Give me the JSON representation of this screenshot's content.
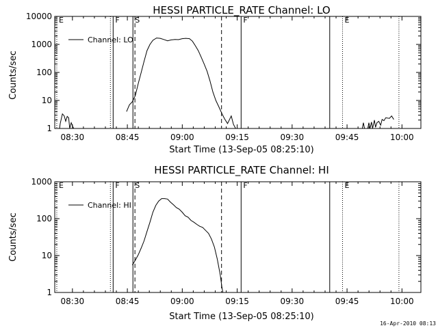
{
  "footer": {
    "timestamp": "16-Apr-2010 08:13"
  },
  "chart_data": [
    {
      "type": "line",
      "title": "HESSI PARTICLE_RATE Channel: LO",
      "xlabel": "Start Time (13-Sep-05 08:25:10)",
      "ylabel": "Counts/sec",
      "legend": "Channel: LO",
      "x_unit": "minutes since 08:25:10",
      "xlim": [
        0,
        100
      ],
      "ylim": [
        1,
        10000
      ],
      "yscale": "log",
      "xticks": [
        {
          "v": 4.83,
          "label": "08:30"
        },
        {
          "v": 19.83,
          "label": "08:45"
        },
        {
          "v": 34.83,
          "label": "09:00"
        },
        {
          "v": 49.83,
          "label": "09:15"
        },
        {
          "v": 64.83,
          "label": "09:30"
        },
        {
          "v": 79.83,
          "label": "09:45"
        },
        {
          "v": 94.83,
          "label": "10:00"
        }
      ],
      "yticks": [
        {
          "v": 1,
          "label": "1"
        },
        {
          "v": 10,
          "label": "10"
        },
        {
          "v": 100,
          "label": "100"
        },
        {
          "v": 1000,
          "label": "1000"
        },
        {
          "v": 10000,
          "label": "10000"
        }
      ],
      "markers": [
        {
          "x": 0.55,
          "label": "E",
          "style": "dotted"
        },
        {
          "x": 15.2,
          "label": "",
          "style": "dotted"
        },
        {
          "x": 15.95,
          "label": "F",
          "style": "solid"
        },
        {
          "x": 21.35,
          "label": "S",
          "style": "solid"
        },
        {
          "x": 21.9,
          "label": "",
          "style": "dashed"
        },
        {
          "x": 45.55,
          "label": "",
          "style": "dashed"
        },
        {
          "x": 50.9,
          "label": "F",
          "style": "solid"
        },
        {
          "x": 75.1,
          "label": "",
          "style": "solid"
        },
        {
          "x": 78.6,
          "label": "E",
          "style": "dotted"
        },
        {
          "x": 94.0,
          "label": "",
          "style": "dotted"
        }
      ],
      "series": [
        {
          "name": "Channel: LO",
          "points": [
            [
              0,
              1
            ],
            [
              1.3,
              1
            ],
            [
              1.5,
              1.5
            ],
            [
              2.1,
              3.3
            ],
            [
              2.6,
              2.8
            ],
            [
              3.0,
              1.8
            ],
            [
              3.4,
              2.7
            ],
            [
              3.8,
              2.4
            ],
            [
              4.1,
              1
            ],
            [
              4.5,
              1.6
            ],
            [
              5.0,
              1.1
            ],
            [
              5.2,
              1
            ],
            [
              19.6,
              4
            ],
            [
              20.4,
              7
            ],
            [
              21.2,
              9
            ],
            [
              22.0,
              15
            ],
            [
              22.8,
              40
            ],
            [
              23.6,
              100
            ],
            [
              24.4,
              250
            ],
            [
              25.2,
              600
            ],
            [
              26.0,
              1000
            ],
            [
              26.8,
              1400
            ],
            [
              27.8,
              1700
            ],
            [
              28.8,
              1650
            ],
            [
              29.8,
              1500
            ],
            [
              30.8,
              1350
            ],
            [
              31.8,
              1450
            ],
            [
              32.8,
              1500
            ],
            [
              33.8,
              1480
            ],
            [
              34.8,
              1600
            ],
            [
              35.8,
              1650
            ],
            [
              36.8,
              1600
            ],
            [
              37.6,
              1300
            ],
            [
              38.4,
              900
            ],
            [
              39.2,
              600
            ],
            [
              40.0,
              350
            ],
            [
              40.8,
              200
            ],
            [
              41.6,
              110
            ],
            [
              42.4,
              50
            ],
            [
              43.2,
              20
            ],
            [
              44.0,
              10
            ],
            [
              44.8,
              6
            ],
            [
              45.6,
              3.5
            ],
            [
              46.4,
              2.2
            ],
            [
              47.2,
              1.5
            ],
            [
              48.2,
              2.8
            ],
            [
              48.8,
              1.4
            ],
            [
              49.4,
              1
            ],
            [
              84.0,
              1
            ],
            [
              84.3,
              1.6
            ],
            [
              84.6,
              1
            ],
            [
              85.5,
              1
            ],
            [
              85.8,
              1.6
            ],
            [
              86.1,
              1
            ],
            [
              86.5,
              1.7
            ],
            [
              86.8,
              1
            ],
            [
              87.3,
              2
            ],
            [
              87.6,
              1.1
            ],
            [
              88.0,
              1.6
            ],
            [
              88.5,
              1.8
            ],
            [
              89.0,
              1.3
            ],
            [
              89.4,
              2.1
            ],
            [
              89.9,
              1.9
            ],
            [
              90.4,
              2.4
            ],
            [
              91.4,
              2.3
            ],
            [
              92.0,
              2.8
            ],
            [
              92.6,
              2.1
            ]
          ]
        }
      ]
    },
    {
      "type": "line",
      "title": "HESSI PARTICLE_RATE Channel: HI",
      "xlabel": "Start Time (13-Sep-05 08:25:10)",
      "ylabel": "Counts/sec",
      "legend": "Channel: HI",
      "x_unit": "minutes since 08:25:10",
      "xlim": [
        0,
        100
      ],
      "ylim": [
        1,
        1000
      ],
      "yscale": "log",
      "xticks": [
        {
          "v": 4.83,
          "label": "08:30"
        },
        {
          "v": 19.83,
          "label": "08:45"
        },
        {
          "v": 34.83,
          "label": "09:00"
        },
        {
          "v": 49.83,
          "label": "09:15"
        },
        {
          "v": 64.83,
          "label": "09:30"
        },
        {
          "v": 79.83,
          "label": "09:45"
        },
        {
          "v": 94.83,
          "label": "10:00"
        }
      ],
      "yticks": [
        {
          "v": 1,
          "label": "1"
        },
        {
          "v": 10,
          "label": "10"
        },
        {
          "v": 100,
          "label": "100"
        },
        {
          "v": 1000,
          "label": "1000"
        }
      ],
      "markers": [
        {
          "x": 0.55,
          "label": "E",
          "style": "dotted"
        },
        {
          "x": 15.2,
          "label": "",
          "style": "dotted"
        },
        {
          "x": 15.95,
          "label": "F",
          "style": "solid"
        },
        {
          "x": 21.35,
          "label": "S",
          "style": "solid"
        },
        {
          "x": 21.9,
          "label": "",
          "style": "dashed"
        },
        {
          "x": 45.55,
          "label": "",
          "style": "dashed"
        },
        {
          "x": 50.9,
          "label": "F",
          "style": "solid"
        },
        {
          "x": 75.1,
          "label": "",
          "style": "solid"
        },
        {
          "x": 78.6,
          "label": "E",
          "style": "dotted"
        },
        {
          "x": 94.0,
          "label": "",
          "style": "dotted"
        }
      ],
      "series": [
        {
          "name": "Channel: HI",
          "points": [
            [
              21.2,
              5.5
            ],
            [
              22.0,
              7.5
            ],
            [
              22.8,
              10.5
            ],
            [
              23.6,
              16
            ],
            [
              24.4,
              25
            ],
            [
              25.2,
              45
            ],
            [
              26.0,
              80
            ],
            [
              26.8,
              150
            ],
            [
              27.6,
              230
            ],
            [
              28.4,
              300
            ],
            [
              29.2,
              350
            ],
            [
              30.0,
              350
            ],
            [
              30.8,
              340
            ],
            [
              31.6,
              280
            ],
            [
              32.4,
              240
            ],
            [
              33.2,
              200
            ],
            [
              34.0,
              180
            ],
            [
              34.8,
              150
            ],
            [
              35.6,
              120
            ],
            [
              36.4,
              110
            ],
            [
              37.2,
              90
            ],
            [
              38.0,
              80
            ],
            [
              38.8,
              70
            ],
            [
              39.6,
              62
            ],
            [
              40.4,
              58
            ],
            [
              41.2,
              48
            ],
            [
              42.0,
              40
            ],
            [
              42.8,
              28
            ],
            [
              43.6,
              17
            ],
            [
              44.4,
              8
            ],
            [
              45.2,
              3
            ],
            [
              45.6,
              1.5
            ],
            [
              45.9,
              1
            ]
          ]
        }
      ]
    }
  ]
}
